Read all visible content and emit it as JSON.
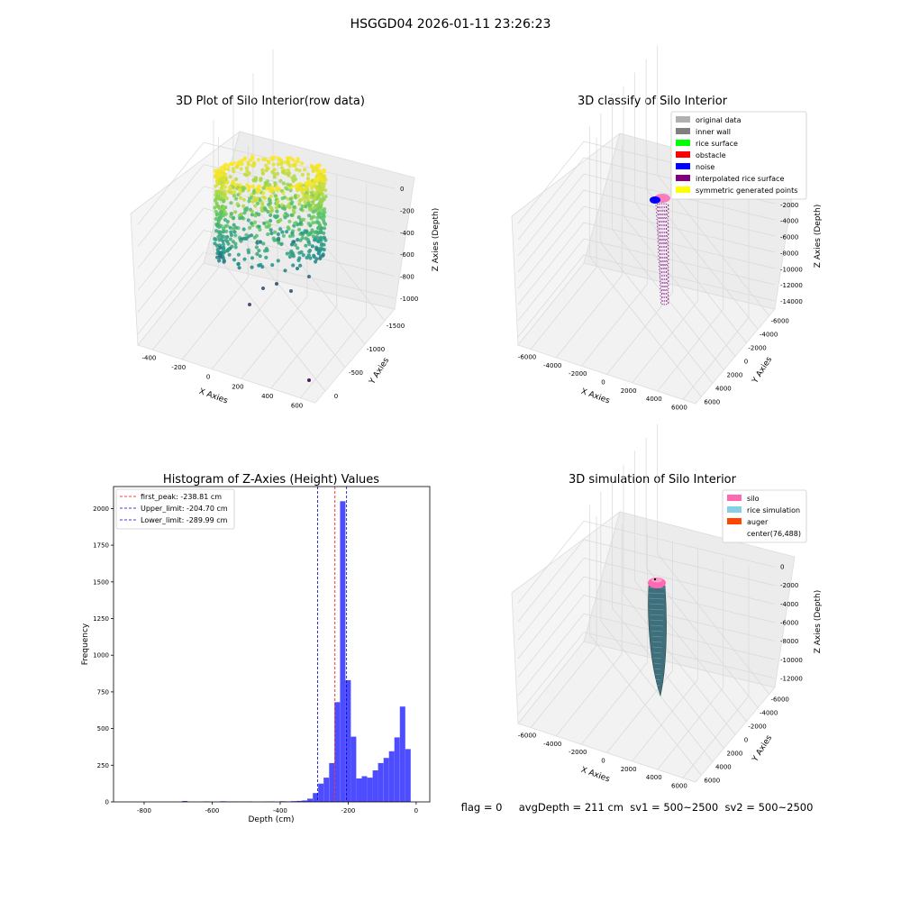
{
  "suptitle": "HSGGD04 2026-01-11 23:26:23",
  "status_line": "flag = 0     avgDepth = 211 cm  sv1 = 500~2500  sv2 = 500~2500",
  "colors": {
    "hist_bar": "#4d4dff",
    "first_peak": "#ff0000",
    "limits": "#0000cc",
    "silo": "#ff69b4",
    "rice_sim": "#87ceeb",
    "auger": "#ff4500",
    "noise": "#0000ff",
    "interp": "#800080"
  },
  "chart_data": [
    {
      "type": "scatter",
      "title": "3D Plot of Silo Interior(row data)",
      "xlabel": "X Axies",
      "ylabel": "Y Axies",
      "zlabel": "Z Axies (Depth)",
      "xticks": [
        "-400",
        "-200",
        "0",
        "200",
        "400",
        "600"
      ],
      "yticks": [
        "0",
        "-500",
        "-1000",
        "-1500"
      ],
      "zticks": [
        "0",
        "-200",
        "-400",
        "-600",
        "-800",
        "-1000"
      ],
      "xlim": [
        -450,
        650
      ],
      "ylim": [
        -1700,
        200
      ],
      "zlim": [
        -1100,
        50
      ]
    },
    {
      "type": "scatter",
      "title": "3D classify of Silo Interior",
      "xlabel": "X Axies",
      "ylabel": "Y Axies",
      "zlabel": "Z Axies (Depth)",
      "xticks": [
        "-6000",
        "-4000",
        "-2000",
        "0",
        "2000",
        "4000",
        "6000"
      ],
      "yticks": [
        "6000",
        "4000",
        "2000",
        "0",
        "-2000",
        "-4000",
        "-6000"
      ],
      "zticks": [
        "0",
        "-2000",
        "-4000",
        "-6000",
        "-8000",
        "-10000",
        "-12000",
        "-14000"
      ],
      "legend": {
        "position": "top-right",
        "items": [
          {
            "label": "original data",
            "color": "#b0b0b0"
          },
          {
            "label": "inner wall",
            "color": "#808080"
          },
          {
            "label": "rice surface",
            "color": "#00ff00"
          },
          {
            "label": "obstacle",
            "color": "#ff0000"
          },
          {
            "label": "noise",
            "color": "#0000ff"
          },
          {
            "label": "interpolated rice surface",
            "color": "#800080"
          },
          {
            "label": "symmetric generated points",
            "color": "#ffff00"
          }
        ]
      }
    },
    {
      "type": "bar",
      "title": "Histogram of Z-Axies (Height) Values",
      "xlabel": "Depth (cm)",
      "ylabel": "Frequency",
      "xlim": [
        -890,
        40
      ],
      "ylim": [
        0,
        2150
      ],
      "xticks": [
        -800,
        -600,
        -400,
        -200,
        0
      ],
      "yticks": [
        0,
        250,
        500,
        750,
        1000,
        1250,
        1500,
        1750,
        2000
      ],
      "bin_width": 16,
      "bins": [
        [
          -688,
          6
        ],
        [
          -624,
          3
        ],
        [
          -576,
          4
        ],
        [
          -560,
          3
        ],
        [
          -544,
          3
        ],
        [
          -528,
          2
        ],
        [
          -512,
          2
        ],
        [
          -496,
          3
        ],
        [
          -448,
          2
        ],
        [
          -432,
          3
        ],
        [
          -400,
          4
        ],
        [
          -384,
          3
        ],
        [
          -368,
          5
        ],
        [
          -352,
          7
        ],
        [
          -336,
          10
        ],
        [
          -320,
          22
        ],
        [
          -304,
          60
        ],
        [
          -288,
          125
        ],
        [
          -272,
          165
        ],
        [
          -256,
          265
        ],
        [
          -240,
          680
        ],
        [
          -224,
          2050
        ],
        [
          -208,
          830
        ],
        [
          -192,
          445
        ],
        [
          -176,
          160
        ],
        [
          -160,
          175
        ],
        [
          -144,
          165
        ],
        [
          -128,
          215
        ],
        [
          -112,
          265
        ],
        [
          -96,
          300
        ],
        [
          -80,
          345
        ],
        [
          -64,
          440
        ],
        [
          -48,
          650
        ],
        [
          -32,
          360
        ]
      ],
      "vlines": [
        {
          "label": "first_peak: -238.81 cm",
          "x": -238.81,
          "color": "#ff0000"
        },
        {
          "label": "Upper_limit: -204.70 cm",
          "x": -204.7,
          "color": "#0000cc"
        },
        {
          "label": "Lower_limit: -289.99 cm",
          "x": -289.99,
          "color": "#0000cc"
        }
      ],
      "legend_position": "top-left"
    },
    {
      "type": "surface",
      "title": "3D simulation of Silo Interior",
      "xlabel": "X Axies",
      "ylabel": "Y Axies",
      "zlabel": "Z Axies (Depth)",
      "xticks": [
        "-6000",
        "-4000",
        "-2000",
        "0",
        "2000",
        "4000",
        "6000"
      ],
      "yticks": [
        "6000",
        "4000",
        "2000",
        "0",
        "-2000",
        "-4000",
        "-6000"
      ],
      "zticks": [
        "0",
        "-2000",
        "-4000",
        "-6000",
        "-8000",
        "-10000",
        "-12000"
      ],
      "legend": {
        "position": "top-right",
        "items": [
          {
            "label": "silo",
            "color": "#ff69b4"
          },
          {
            "label": "rice simulation",
            "color": "#87ceeb"
          },
          {
            "label": "auger",
            "color": "#ff4500"
          },
          {
            "label": "center(76,488)",
            "color": "#ffffff"
          }
        ]
      }
    }
  ]
}
